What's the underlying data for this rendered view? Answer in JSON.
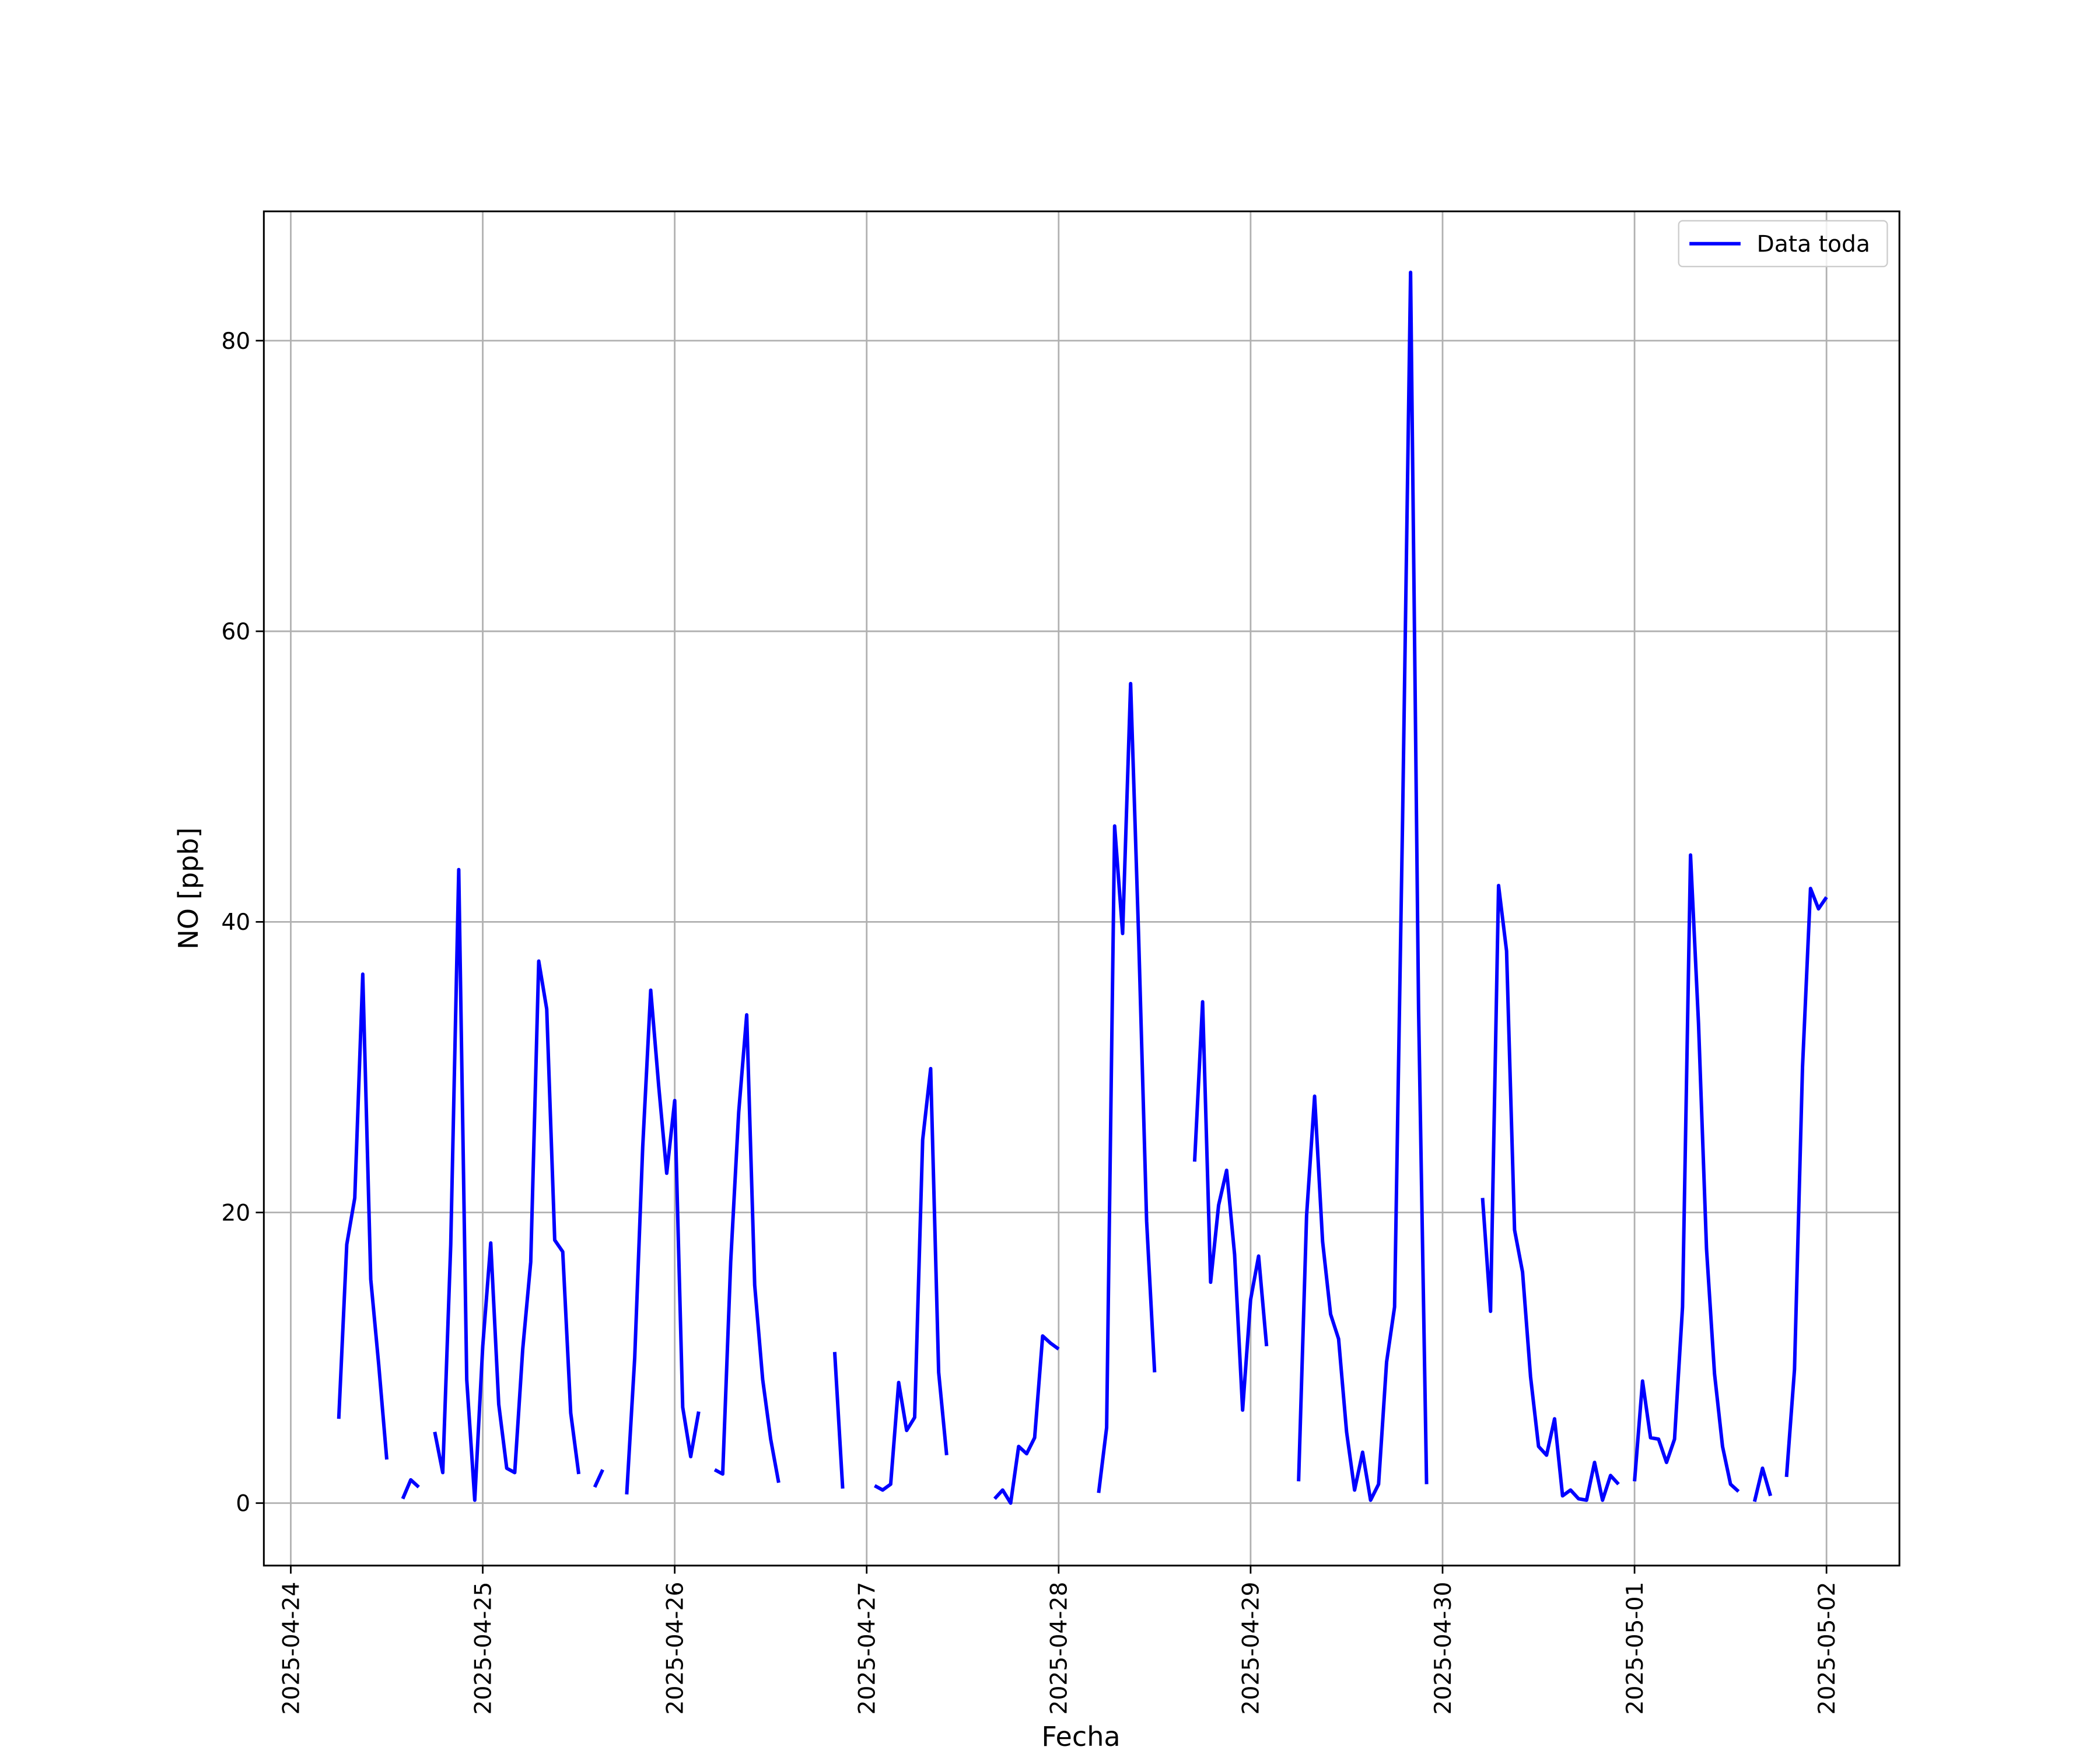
{
  "chart_data": {
    "type": "line",
    "x_label": "Fecha",
    "y_label": "NO [ppb]",
    "x": [
      "2025-04-24T06:00",
      "2025-04-24T07:00",
      "2025-04-24T08:00",
      "2025-04-24T09:00",
      "2025-04-24T10:00",
      "2025-04-24T11:00",
      "2025-04-24T12:00",
      "2025-04-24T13:00",
      "2025-04-24T14:00",
      "2025-04-24T15:00",
      "2025-04-24T16:00",
      "2025-04-24T17:00",
      "2025-04-24T18:00",
      "2025-04-24T19:00",
      "2025-04-24T20:00",
      "2025-04-24T21:00",
      "2025-04-24T22:00",
      "2025-04-24T23:00",
      "2025-04-25T00:00",
      "2025-04-25T01:00",
      "2025-04-25T02:00",
      "2025-04-25T03:00",
      "2025-04-25T04:00",
      "2025-04-25T05:00",
      "2025-04-25T06:00",
      "2025-04-25T07:00",
      "2025-04-25T08:00",
      "2025-04-25T09:00",
      "2025-04-25T10:00",
      "2025-04-25T11:00",
      "2025-04-25T12:00",
      "2025-04-25T13:00",
      "2025-04-25T14:00",
      "2025-04-25T15:00",
      "2025-04-25T16:00",
      "2025-04-25T17:00",
      "2025-04-25T18:00",
      "2025-04-25T19:00",
      "2025-04-25T20:00",
      "2025-04-25T21:00",
      "2025-04-25T22:00",
      "2025-04-25T23:00",
      "2025-04-26T00:00",
      "2025-04-26T01:00",
      "2025-04-26T02:00",
      "2025-04-26T03:00",
      "2025-04-26T04:00",
      "2025-04-26T05:00",
      "2025-04-26T06:00",
      "2025-04-26T07:00",
      "2025-04-26T08:00",
      "2025-04-26T09:00",
      "2025-04-26T10:00",
      "2025-04-26T11:00",
      "2025-04-26T12:00",
      "2025-04-26T13:00",
      "2025-04-26T14:00",
      "2025-04-26T15:00",
      "2025-04-26T16:00",
      "2025-04-26T17:00",
      "2025-04-26T18:00",
      "2025-04-26T19:00",
      "2025-04-26T20:00",
      "2025-04-26T21:00",
      "2025-04-26T22:00",
      "2025-04-26T23:00",
      "2025-04-27T00:00",
      "2025-04-27T01:00",
      "2025-04-27T02:00",
      "2025-04-27T03:00",
      "2025-04-27T04:00",
      "2025-04-27T05:00",
      "2025-04-27T06:00",
      "2025-04-27T07:00",
      "2025-04-27T08:00",
      "2025-04-27T09:00",
      "2025-04-27T10:00",
      "2025-04-27T11:00",
      "2025-04-27T12:00",
      "2025-04-27T13:00",
      "2025-04-27T14:00",
      "2025-04-27T15:00",
      "2025-04-27T16:00",
      "2025-04-27T17:00",
      "2025-04-27T18:00",
      "2025-04-27T19:00",
      "2025-04-27T20:00",
      "2025-04-27T21:00",
      "2025-04-27T22:00",
      "2025-04-27T23:00",
      "2025-04-28T00:00",
      "2025-04-28T01:00",
      "2025-04-28T02:00",
      "2025-04-28T03:00",
      "2025-04-28T04:00",
      "2025-04-28T05:00",
      "2025-04-28T06:00",
      "2025-04-28T07:00",
      "2025-04-28T08:00",
      "2025-04-28T09:00",
      "2025-04-28T10:00",
      "2025-04-28T11:00",
      "2025-04-28T12:00",
      "2025-04-28T13:00",
      "2025-04-28T14:00",
      "2025-04-28T15:00",
      "2025-04-28T16:00",
      "2025-04-28T17:00",
      "2025-04-28T18:00",
      "2025-04-28T19:00",
      "2025-04-28T20:00",
      "2025-04-28T21:00",
      "2025-04-28T22:00",
      "2025-04-28T23:00",
      "2025-04-29T00:00",
      "2025-04-29T01:00",
      "2025-04-29T02:00",
      "2025-04-29T03:00",
      "2025-04-29T04:00",
      "2025-04-29T05:00",
      "2025-04-29T06:00",
      "2025-04-29T07:00",
      "2025-04-29T08:00",
      "2025-04-29T09:00",
      "2025-04-29T10:00",
      "2025-04-29T11:00",
      "2025-04-29T12:00",
      "2025-04-29T13:00",
      "2025-04-29T14:00",
      "2025-04-29T15:00",
      "2025-04-29T16:00",
      "2025-04-29T17:00",
      "2025-04-29T18:00",
      "2025-04-29T19:00",
      "2025-04-29T20:00",
      "2025-04-29T21:00",
      "2025-04-29T22:00",
      "2025-04-29T23:00",
      "2025-04-30T00:00",
      "2025-04-30T01:00",
      "2025-04-30T02:00",
      "2025-04-30T03:00",
      "2025-04-30T04:00",
      "2025-04-30T05:00",
      "2025-04-30T06:00",
      "2025-04-30T07:00",
      "2025-04-30T08:00",
      "2025-04-30T09:00",
      "2025-04-30T10:00",
      "2025-04-30T11:00",
      "2025-04-30T12:00",
      "2025-04-30T13:00",
      "2025-04-30T14:00",
      "2025-04-30T15:00",
      "2025-04-30T16:00",
      "2025-04-30T17:00",
      "2025-04-30T18:00",
      "2025-04-30T19:00",
      "2025-04-30T20:00",
      "2025-04-30T21:00",
      "2025-04-30T22:00",
      "2025-04-30T23:00",
      "2025-05-01T00:00",
      "2025-05-01T01:00",
      "2025-05-01T02:00",
      "2025-05-01T03:00",
      "2025-05-01T04:00",
      "2025-05-01T05:00",
      "2025-05-01T06:00",
      "2025-05-01T07:00",
      "2025-05-01T08:00",
      "2025-05-01T09:00",
      "2025-05-01T10:00",
      "2025-05-01T11:00",
      "2025-05-01T12:00",
      "2025-05-01T13:00",
      "2025-05-01T14:00",
      "2025-05-01T15:00",
      "2025-05-01T16:00",
      "2025-05-01T17:00",
      "2025-05-01T18:00",
      "2025-05-01T19:00",
      "2025-05-01T20:00",
      "2025-05-01T21:00",
      "2025-05-01T22:00",
      "2025-05-01T23:00",
      "2025-05-02T00:00"
    ],
    "series": [
      {
        "name": "Data toda",
        "color": "#0000ff",
        "values": [
          5.8,
          17.8,
          21.0,
          36.4,
          15.4,
          9.5,
          3.0,
          null,
          0.3,
          1.6,
          1.1,
          null,
          4.9,
          2.1,
          17.8,
          43.6,
          8.5,
          0.2,
          10.8,
          17.9,
          6.8,
          2.4,
          2.1,
          10.6,
          16.6,
          37.3,
          34.0,
          18.1,
          17.3,
          6.2,
          2.0,
          null,
          1.1,
          2.3,
          null,
          null,
          0.6,
          10.0,
          24.5,
          35.3,
          28.7,
          22.7,
          27.7,
          6.6,
          3.2,
          6.3,
          null,
          2.3,
          2.0,
          16.6,
          26.9,
          33.6,
          15.0,
          8.5,
          4.4,
          1.4,
          null,
          null,
          null,
          null,
          null,
          null,
          10.4,
          1.0,
          null,
          null,
          null,
          1.2,
          0.9,
          1.3,
          8.3,
          5.0,
          5.9,
          25.0,
          29.9,
          9.0,
          3.3,
          null,
          null,
          null,
          null,
          null,
          0.3,
          0.9,
          0.0,
          3.9,
          3.4,
          4.5,
          11.5,
          11.0,
          10.6,
          null,
          null,
          null,
          null,
          0.7,
          5.2,
          46.6,
          39.2,
          56.4,
          39.0,
          19.4,
          9.0,
          null,
          null,
          null,
          null,
          23.5,
          34.5,
          15.2,
          20.5,
          22.9,
          17.1,
          6.4,
          14.0,
          17.0,
          10.8,
          null,
          null,
          null,
          1.5,
          19.8,
          28.0,
          18.0,
          13.0,
          11.3,
          4.9,
          0.9,
          3.5,
          0.2,
          1.3,
          9.7,
          13.5,
          47.0,
          84.7,
          34.0,
          1.3,
          null,
          null,
          null,
          null,
          null,
          null,
          21.0,
          13.2,
          42.5,
          38.0,
          18.8,
          15.9,
          8.7,
          3.9,
          3.3,
          5.8,
          0.5,
          0.9,
          0.3,
          0.2,
          2.8,
          0.2,
          1.9,
          1.3,
          null,
          1.5,
          8.4,
          4.5,
          4.4,
          2.8,
          4.4,
          13.5,
          44.6,
          33.0,
          17.5,
          8.9,
          3.9,
          1.3,
          0.8,
          null,
          0.1,
          2.4,
          0.5,
          null,
          1.8,
          9.2,
          30.0,
          42.3,
          40.9,
          41.7
        ]
      }
    ],
    "xlim": [
      "2025-04-23T20:38",
      "2025-05-02T09:07"
    ],
    "xticks": [
      "2025-04-24",
      "2025-04-25",
      "2025-04-26",
      "2025-04-27",
      "2025-04-28",
      "2025-04-29",
      "2025-04-30",
      "2025-05-01",
      "2025-05-02"
    ],
    "ylim": [
      -4.3,
      88.9
    ],
    "yticks": [
      0,
      20,
      40,
      60,
      80
    ],
    "grid": true,
    "legend": "upper right"
  }
}
